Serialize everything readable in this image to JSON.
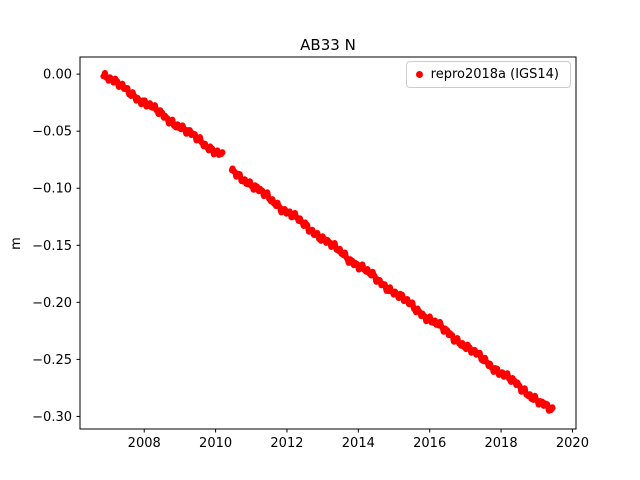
{
  "chart_data": {
    "type": "scatter",
    "title": "AB33 N",
    "xlabel": "",
    "ylabel": "m",
    "xlim": [
      2006.2,
      2020.1
    ],
    "ylim": [
      -0.311,
      0.015
    ],
    "grid": false,
    "xticks": {
      "values": [
        2008,
        2010,
        2012,
        2014,
        2016,
        2018,
        2020
      ],
      "labels": [
        "2008",
        "2010",
        "2012",
        "2014",
        "2016",
        "2018",
        "2020"
      ]
    },
    "yticks": {
      "values": [
        0.0,
        -0.05,
        -0.1,
        -0.15,
        -0.2,
        -0.25,
        -0.3
      ],
      "labels": [
        "0.00",
        "−0.05",
        "−0.10",
        "−0.15",
        "−0.20",
        "−0.25",
        "−0.30"
      ]
    },
    "legend": {
      "position": "upper right",
      "entries": [
        {
          "label": "repro2018a (IGS14)",
          "color": "#ff0000",
          "marker": "dot"
        }
      ]
    },
    "series": [
      {
        "name": "repro2018a (IGS14)",
        "color": "#ff0000",
        "marker": "dot",
        "marker_radius_px": 2.8,
        "point_step_years": 0.01,
        "segments": [
          {
            "x_start": 2006.85,
            "x_end": 2010.2,
            "y_start": 0.0,
            "y_end": -0.072
          },
          {
            "x_start": 2010.45,
            "x_end": 2019.45,
            "y_start": -0.084,
            "y_end": -0.296
          }
        ],
        "data_gap": {
          "x_start": 2010.2,
          "x_end": 2010.45
        },
        "sampled_points": [
          [
            2007.0,
            -0.004
          ],
          [
            2008.0,
            -0.025
          ],
          [
            2009.0,
            -0.047
          ],
          [
            2010.0,
            -0.068
          ],
          [
            2011.0,
            -0.097
          ],
          [
            2012.0,
            -0.121
          ],
          [
            2013.0,
            -0.144
          ],
          [
            2014.0,
            -0.168
          ],
          [
            2015.0,
            -0.192
          ],
          [
            2016.0,
            -0.215
          ],
          [
            2017.0,
            -0.238
          ],
          [
            2018.0,
            -0.262
          ],
          [
            2019.0,
            -0.285
          ],
          [
            2019.45,
            -0.296
          ]
        ],
        "trend_m_per_year": -0.0235,
        "noise_band_m": 0.004
      }
    ],
    "axes_color": "#000000",
    "background_color": "#ffffff"
  }
}
